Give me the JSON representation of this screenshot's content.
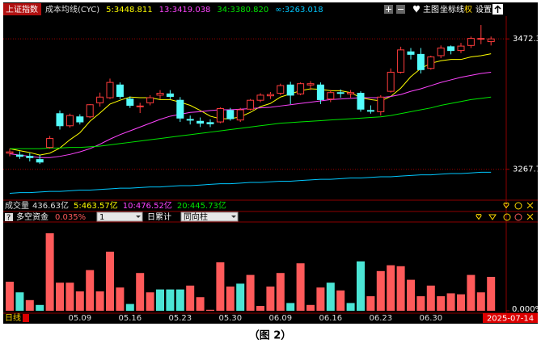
{
  "ui": {
    "index_name": "上证指数",
    "indicator": "成本均线(CYC)",
    "toolbar": [
      "主图",
      "坐标线",
      "权",
      "设置"
    ],
    "volume": {
      "label": "成交量",
      "value": "436.63亿",
      "ma": [
        {
          "text": "5:463.57亿",
          "color": "#ffff00"
        },
        {
          "text": "10:476.52亿",
          "color": "#ff44ff"
        },
        {
          "text": "20:445.73亿",
          "color": "#00e600"
        }
      ]
    },
    "flow_value": "0.035%",
    "dropdown_1": "1",
    "mode": "日累计",
    "dropdown_2": "同向柱",
    "period": "日线",
    "cursor_date": "2025-07-14",
    "caption": "（图 2）"
  },
  "chart_data": [
    {
      "type": "candlestick",
      "open": [
        3293,
        3290,
        3288,
        3283,
        3302,
        3355,
        3336,
        3350,
        3350,
        3372,
        3380,
        3400,
        3378,
        3366,
        3372,
        3384,
        3386,
        3376,
        3346,
        3343,
        3341,
        3342,
        3360,
        3345,
        3362,
        3376,
        3383,
        3387,
        3400,
        3386,
        3400,
        3400,
        3378,
        3388,
        3386,
        3387,
        3360,
        3358,
        3390,
        3420,
        3452,
        3448,
        3426,
        3446,
        3460,
        3454,
        3462,
        3472,
        3468
      ],
      "high": [
        3300,
        3296,
        3293,
        3290,
        3320,
        3360,
        3355,
        3354,
        3370,
        3388,
        3410,
        3404,
        3382,
        3372,
        3384,
        3392,
        3392,
        3381,
        3352,
        3349,
        3346,
        3365,
        3364,
        3364,
        3378,
        3387,
        3389,
        3402,
        3405,
        3404,
        3406,
        3404,
        3392,
        3393,
        3392,
        3390,
        3368,
        3384,
        3426,
        3460,
        3458,
        3458,
        3446,
        3462,
        3462,
        3466,
        3476,
        3494,
        3476
      ],
      "low": [
        3288,
        3284,
        3280,
        3276,
        3300,
        3330,
        3333,
        3338,
        3348,
        3366,
        3378,
        3378,
        3364,
        3356,
        3368,
        3378,
        3378,
        3342,
        3338,
        3334,
        3334,
        3340,
        3344,
        3342,
        3360,
        3373,
        3378,
        3384,
        3370,
        3384,
        3392,
        3370,
        3373,
        3380,
        3380,
        3358,
        3355,
        3352,
        3388,
        3418,
        3440,
        3418,
        3424,
        3442,
        3448,
        3450,
        3458,
        3464,
        3462
      ],
      "close": [
        3295,
        3288,
        3286,
        3279,
        3316,
        3336,
        3352,
        3342,
        3369,
        3381,
        3404,
        3382,
        3368,
        3367,
        3380,
        3387,
        3382,
        3348,
        3345,
        3340,
        3339,
        3363,
        3347,
        3361,
        3376,
        3384,
        3385,
        3399,
        3384,
        3402,
        3402,
        3377,
        3388,
        3387,
        3388,
        3362,
        3359,
        3381,
        3420,
        3455,
        3448,
        3424,
        3444,
        3458,
        3454,
        3461,
        3473,
        3473,
        3472.3
      ],
      "up_color": "#ff3c3c",
      "down_color": "#54fcfc",
      "series": [
        {
          "name": "5:3448.811",
          "color": "#ffff00",
          "values": [
            3300,
            3297,
            3294,
            3290,
            3293,
            3301,
            3314,
            3325,
            3343,
            3356,
            3370,
            3376,
            3381,
            3380,
            3380,
            3377,
            3377,
            3373,
            3368,
            3360,
            3351,
            3347,
            3347,
            3350,
            3357,
            3366,
            3371,
            3381,
            3386,
            3391,
            3394,
            3393,
            3391,
            3391,
            3388,
            3380,
            3377,
            3375,
            3382,
            3395,
            3413,
            3426,
            3434,
            3438,
            3440,
            3440,
            3444,
            3446,
            3449
          ]
        },
        {
          "name": "13:3419.038",
          "color": "#ff44ff",
          "values": [
            3292,
            3290,
            3288,
            3286,
            3286,
            3288,
            3291,
            3295,
            3300,
            3307,
            3315,
            3322,
            3328,
            3334,
            3340,
            3346,
            3351,
            3354,
            3357,
            3358,
            3360,
            3361,
            3361,
            3362,
            3363,
            3364,
            3365,
            3367,
            3369,
            3371,
            3373,
            3375,
            3377,
            3378,
            3379,
            3380,
            3380,
            3380,
            3382,
            3385,
            3390,
            3394,
            3399,
            3404,
            3408,
            3412,
            3415,
            3418,
            3420
          ]
        },
        {
          "name": "34:3380.820",
          "color": "#00e600",
          "values": [
            3300,
            3300,
            3300,
            3300,
            3301,
            3301,
            3302,
            3302,
            3303,
            3304,
            3306,
            3308,
            3310,
            3312,
            3314,
            3316,
            3318,
            3320,
            3322,
            3324,
            3326,
            3328,
            3330,
            3332,
            3334,
            3336,
            3338,
            3340,
            3341,
            3342,
            3343,
            3344,
            3345,
            3346,
            3347,
            3348,
            3349,
            3350,
            3352,
            3355,
            3358,
            3361,
            3364,
            3368,
            3371,
            3374,
            3377,
            3379,
            3381
          ]
        },
        {
          "name": "∞:3263.018",
          "color": "#00c8ff",
          "values": [
            3230,
            3231,
            3231,
            3232,
            3233,
            3233,
            3234,
            3235,
            3235,
            3236,
            3237,
            3238,
            3238,
            3239,
            3240,
            3240,
            3241,
            3242,
            3242,
            3243,
            3244,
            3245,
            3245,
            3246,
            3247,
            3247,
            3248,
            3249,
            3249,
            3250,
            3251,
            3252,
            3252,
            3253,
            3254,
            3254,
            3255,
            3256,
            3256,
            3257,
            3258,
            3259,
            3259,
            3260,
            3261,
            3261,
            3262,
            3263,
            3263
          ]
        }
      ],
      "ylim": [
        3223,
        3508
      ],
      "yticks": [
        3472.3,
        3267.7
      ],
      "grid": true
    },
    {
      "type": "bar",
      "title": "多空资金",
      "categories": [
        null,
        null,
        null,
        null,
        null,
        null,
        null,
        "05.09",
        null,
        null,
        null,
        null,
        "05.16",
        null,
        null,
        null,
        null,
        "05.23",
        null,
        null,
        null,
        null,
        "05.30",
        null,
        null,
        null,
        null,
        "06.09",
        null,
        null,
        null,
        null,
        "06.16",
        null,
        null,
        null,
        null,
        "06.23",
        null,
        null,
        null,
        null,
        "06.30",
        null,
        null,
        null,
        null,
        null,
        null
      ],
      "values": [
        0.03,
        0.019,
        0.011,
        0.006,
        0.08,
        0.029,
        0.029,
        0.02,
        0.042,
        0.02,
        0.061,
        0.024,
        0.007,
        0.039,
        0.019,
        0.022,
        0.022,
        0.022,
        0.026,
        0.014,
        0.001,
        0.05,
        0.025,
        0.028,
        0.037,
        0.005,
        0.025,
        0.039,
        0.008,
        0.049,
        0.006,
        0.024,
        0.029,
        0.021,
        0.008,
        0.051,
        0.015,
        0.041,
        0.047,
        0.046,
        0.032,
        0.015,
        0.026,
        0.015,
        0.018,
        0.017,
        0.037,
        0.019,
        0.035
      ],
      "colors": [
        "#ff5a5a",
        "#4be5d5",
        "#ff5a5a",
        "#4be5d5",
        "#ff5a5a",
        "#ff5a5a",
        "#ff5a5a",
        "#ff5a5a",
        "#ff5a5a",
        "#ff5a5a",
        "#ff5a5a",
        "#ff5a5a",
        "#4be5d5",
        "#ff5a5a",
        "#ff5a5a",
        "#4be5d5",
        "#4be5d5",
        "#4be5d5",
        "#ff5a5a",
        "#ff5a5a",
        "#ff5a5a",
        "#ff5a5a",
        "#ff5a5a",
        "#4be5d5",
        "#ff5a5a",
        "#ff5a5a",
        "#ff5a5a",
        "#ff5a5a",
        "#4be5d5",
        "#ff5a5a",
        "#ff5a5a",
        "#ff5a5a",
        "#4be5d5",
        "#ff5a5a",
        "#4be5d5",
        "#4be5d5",
        "#ff5a5a",
        "#ff5a5a",
        "#ff5a5a",
        "#ff5a5a",
        "#ff5a5a",
        "#ff5a5a",
        "#ff5a5a",
        "#ff5a5a",
        "#ff5a5a",
        "#ff5a5a",
        "#ff5a5a",
        "#ff5a5a",
        "#ff5a5a"
      ],
      "ylim": [
        0,
        0.09
      ],
      "yticks": [
        {
          "value": 0,
          "label": "0.000%"
        }
      ]
    }
  ]
}
